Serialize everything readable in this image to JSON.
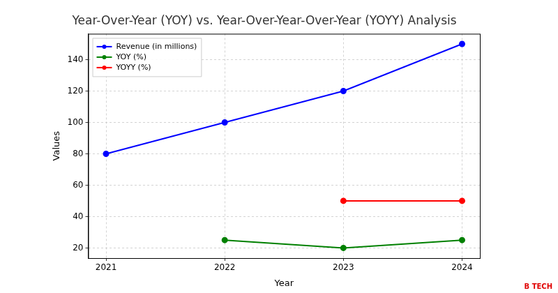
{
  "chart_data": {
    "type": "line",
    "title": "Year-Over-Year (YOY) vs. Year-Over-Year-Over-Year (YOYY) Analysis",
    "x_label": "Year",
    "y_label": "Values",
    "x": [
      2021,
      2022,
      2023,
      2024
    ],
    "series": [
      {
        "name": "Revenue (in millions)",
        "color": "#0000ff",
        "values": [
          80,
          100,
          120,
          150
        ],
        "marker": "circle",
        "line_style": "solid"
      },
      {
        "name": "YOY (%)",
        "color": "#008000",
        "values": [
          null,
          25,
          20,
          25
        ],
        "marker": "circle",
        "line_style": "solid"
      },
      {
        "name": "YOYY (%)",
        "color": "#ff0000",
        "values": [
          null,
          null,
          50,
          50
        ],
        "marker": "circle",
        "line_style": "solid"
      }
    ],
    "xlim": [
      2020.85,
      2024.15
    ],
    "xticks": [
      2021,
      2022,
      2023,
      2024
    ],
    "ylim": [
      13.5,
      156.5
    ],
    "yticks": [
      20,
      40,
      60,
      80,
      100,
      120,
      140
    ],
    "grid": true,
    "legend": "upper left",
    "annotations": [
      "B TECH"
    ]
  }
}
